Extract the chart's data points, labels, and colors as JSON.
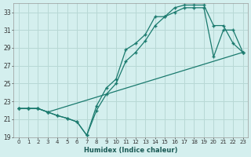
{
  "xlabel": "Humidex (Indice chaleur)",
  "bg_color": "#d4efee",
  "line_color": "#1a7a6e",
  "grid_color": "#b8d8d5",
  "xlim": [
    -0.5,
    23.5
  ],
  "ylim": [
    19,
    34
  ],
  "xticks": [
    0,
    1,
    2,
    3,
    4,
    5,
    6,
    7,
    8,
    9,
    10,
    11,
    12,
    13,
    14,
    15,
    16,
    17,
    18,
    19,
    20,
    21,
    22,
    23
  ],
  "yticks": [
    19,
    21,
    23,
    25,
    27,
    29,
    31,
    33
  ],
  "line1_x": [
    0,
    1,
    2,
    3,
    4,
    5,
    6,
    7,
    8,
    9,
    10,
    11,
    12,
    13,
    14,
    15,
    16,
    17,
    18,
    19,
    20,
    21,
    22,
    23
  ],
  "line1_y": [
    22.2,
    22.2,
    22.2,
    21.8,
    21.4,
    21.1,
    20.7,
    19.2,
    22.0,
    23.8,
    25.0,
    27.5,
    28.5,
    29.8,
    31.5,
    32.5,
    33.0,
    33.5,
    33.5,
    33.5,
    28.0,
    31.0,
    31.0,
    28.5
  ],
  "line2_x": [
    0,
    1,
    2,
    3,
    4,
    5,
    6,
    7,
    8,
    9,
    10,
    11,
    12,
    13,
    14,
    15,
    16,
    17,
    18,
    19,
    20,
    21,
    22,
    23
  ],
  "line2_y": [
    22.2,
    22.2,
    22.2,
    21.8,
    21.4,
    21.1,
    20.7,
    19.2,
    22.5,
    24.5,
    25.5,
    28.8,
    29.5,
    30.5,
    32.5,
    32.5,
    33.5,
    33.8,
    33.8,
    33.8,
    31.5,
    31.5,
    29.5,
    28.5
  ],
  "line3_x": [
    0,
    1,
    2,
    3,
    23
  ],
  "line3_y": [
    22.2,
    22.2,
    22.2,
    21.8,
    28.5
  ]
}
